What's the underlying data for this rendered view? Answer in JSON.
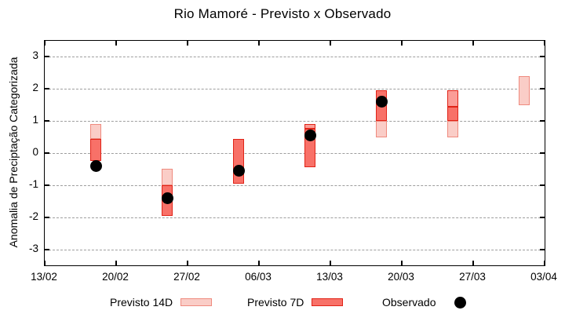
{
  "title": "Rio Mamoré - Previsto x Observado",
  "axes": {
    "ylabel": "Anomalia de Preciptação Categorizada",
    "yticks": [
      3,
      2,
      1,
      0,
      -1,
      -2,
      -3
    ],
    "ylim": [
      -3.5,
      3.5
    ],
    "xticks": [
      "13/02",
      "20/02",
      "27/02",
      "06/03",
      "13/03",
      "20/03",
      "27/03",
      "03/04"
    ],
    "x_total_days": 49,
    "grid": "dashed-horizontal"
  },
  "legend": [
    {
      "label": "Previsto 14D",
      "swatch": "p14"
    },
    {
      "label": "Previsto 7D",
      "swatch": "p7"
    },
    {
      "label": "Observado",
      "swatch": "dot"
    }
  ],
  "colors": {
    "p14_fill": "#facdc7",
    "p14_stroke": "#ef8a7e",
    "p7_fill": "#f87168",
    "p7_stroke": "#e02317",
    "mid_fill": "#fb9d97",
    "mid_stroke": "#e02317",
    "grid": "#9e9e9e",
    "frame": "#000000",
    "observado": "#000000"
  },
  "chart_data": {
    "type": "bar",
    "subtype": "forecast-range-boxes-with-observed-dots",
    "x_axis_start_label": "13/02",
    "clusters": [
      {
        "x_days": 5,
        "bands": [
          {
            "role": "p14",
            "from": 0.45,
            "to": 0.9
          },
          {
            "role": "p7",
            "from": -0.25,
            "to": 0.45
          }
        ],
        "observado": -0.4
      },
      {
        "x_days": 12,
        "bands": [
          {
            "role": "p14",
            "from": -1.0,
            "to": -0.5
          },
          {
            "role": "p7",
            "from": -1.95,
            "to": -1.0
          }
        ],
        "observado": -1.4
      },
      {
        "x_days": 19,
        "bands": [
          {
            "role": "p7",
            "from": -0.95,
            "to": 0.45
          }
        ],
        "observado": -0.55
      },
      {
        "x_days": 26,
        "bands": [
          {
            "role": "mid",
            "from": 0.75,
            "to": 0.9
          },
          {
            "role": "p7",
            "from": -0.45,
            "to": 0.75
          }
        ],
        "observado": 0.55
      },
      {
        "x_days": 33,
        "bands": [
          {
            "role": "p7",
            "from": 1.0,
            "to": 1.95
          },
          {
            "role": "p14",
            "from": 0.5,
            "to": 1.0
          }
        ],
        "observado": 1.6
      },
      {
        "x_days": 40,
        "bands": [
          {
            "role": "mid",
            "from": 1.45,
            "to": 1.95
          },
          {
            "role": "p7",
            "from": 1.0,
            "to": 1.45
          },
          {
            "role": "p14",
            "from": 0.5,
            "to": 1.0
          }
        ],
        "observado": null
      },
      {
        "x_days": 47,
        "bands": [
          {
            "role": "p14",
            "from": 1.5,
            "to": 2.4
          }
        ],
        "observado": null
      }
    ]
  }
}
